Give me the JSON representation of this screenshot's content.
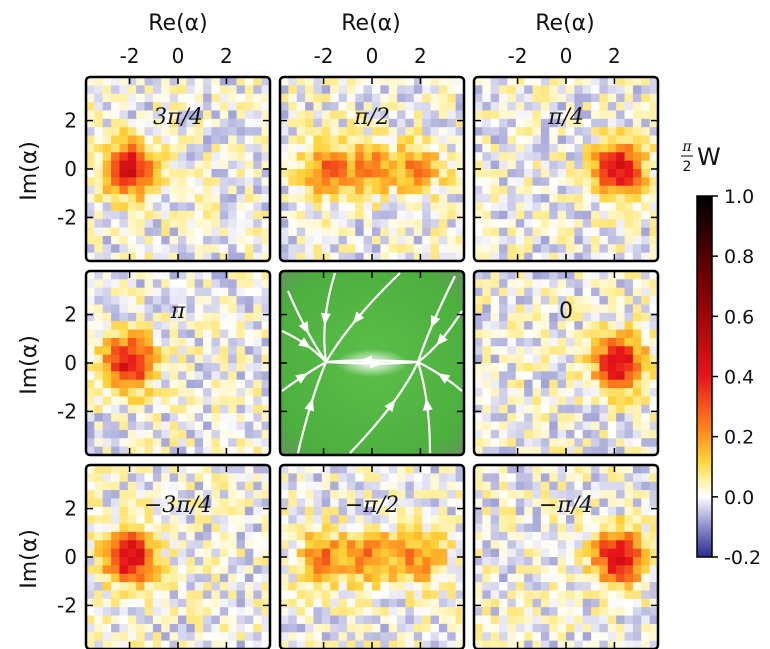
{
  "chart_data": {
    "type": "heatmap",
    "title": "",
    "xlabel": "Re(α)",
    "ylabel": "Im(α)",
    "x_ticks": [
      "-2",
      "0",
      "2"
    ],
    "y_ticks": [
      "2",
      "0",
      "-2"
    ],
    "xlim": [
      -3.8,
      3.8
    ],
    "ylim": [
      -3.8,
      3.8
    ],
    "grid": false,
    "colorbar": {
      "label": "π/2 W",
      "range": [
        -0.2,
        1.0
      ],
      "ticks": [
        "1.0",
        "0.8",
        "0.6",
        "0.4",
        "0.2",
        "0.0",
        "-0.2"
      ],
      "colors": [
        "#2b2b8f",
        "#8a8ccc",
        "#ffffff",
        "#ffef9a",
        "#ffd23a",
        "#ff8a1c",
        "#e8141a",
        "#7a0000",
        "#000000"
      ]
    },
    "panels": [
      {
        "label": "3π/4",
        "blobs": [
          {
            "x": -2.0,
            "y": 0.0,
            "peak": 0.45
          }
        ]
      },
      {
        "label": "π/2",
        "blobs": [
          {
            "x": -1.9,
            "y": 0.0,
            "peak": 0.25
          },
          {
            "x": 0.0,
            "y": 0.0,
            "peak": 0.22
          },
          {
            "x": 1.9,
            "y": 0.0,
            "peak": 0.2
          }
        ]
      },
      {
        "label": "π/4",
        "blobs": [
          {
            "x": 2.2,
            "y": 0.0,
            "peak": 0.45
          }
        ]
      },
      {
        "label": "π",
        "blobs": [
          {
            "x": -2.0,
            "y": 0.0,
            "peak": 0.45
          }
        ]
      },
      {
        "label": "",
        "type": "flow",
        "background": "#4caf3e",
        "stream_color": "#ffffff"
      },
      {
        "label": "0",
        "blobs": [
          {
            "x": 2.2,
            "y": 0.0,
            "peak": 0.45
          }
        ]
      },
      {
        "label": "−3π/4",
        "blobs": [
          {
            "x": -2.0,
            "y": 0.0,
            "peak": 0.48
          }
        ]
      },
      {
        "label": "−π/2",
        "blobs": [
          {
            "x": -2.0,
            "y": 0.0,
            "peak": 0.24
          },
          {
            "x": 0.0,
            "y": 0.0,
            "peak": 0.22
          },
          {
            "x": 2.0,
            "y": 0.0,
            "peak": 0.22
          }
        ]
      },
      {
        "label": "−π/4",
        "blobs": [
          {
            "x": 2.2,
            "y": 0.0,
            "peak": 0.48
          }
        ]
      }
    ]
  }
}
